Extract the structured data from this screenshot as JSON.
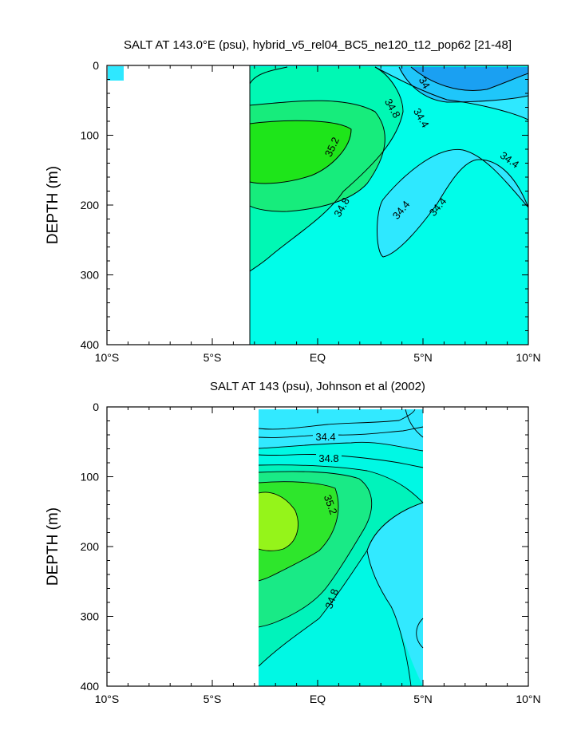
{
  "chart_data": [
    {
      "type": "contour",
      "title": "SALT AT 143.0°E (psu), hybrid_v5_rel04_BC5_ne120_t12_pop62 [21-48]",
      "ylabel": "DEPTH (m)",
      "xlim": [
        -10,
        10
      ],
      "ylim": [
        400,
        0
      ],
      "x_ticks": [
        {
          "value": -10,
          "label": "10°S"
        },
        {
          "value": -5,
          "label": "5°S"
        },
        {
          "value": 0,
          "label": "EQ"
        },
        {
          "value": 5,
          "label": "5°N"
        },
        {
          "value": 10,
          "label": "10°N"
        }
      ],
      "y_ticks": [
        {
          "value": 0,
          "label": "0"
        },
        {
          "value": 100,
          "label": "100"
        },
        {
          "value": 200,
          "label": "200"
        },
        {
          "value": 300,
          "label": "300"
        },
        {
          "value": 400,
          "label": "400"
        }
      ],
      "contour_interval": 0.2,
      "data_lon_range": [
        -3.2,
        10
      ],
      "contour_labels": [
        "34",
        "34.4",
        "34.8",
        "35.2",
        "34.4",
        "34.8",
        "34.4",
        "34.4"
      ],
      "salinity_regions": [
        {
          "value": 34.0,
          "color": "#1aa0f2",
          "desc": "fresh core near 7°N at surface"
        },
        {
          "value": 34.2,
          "color": "#1fc6fa",
          "desc": "upper-right"
        },
        {
          "value": 34.4,
          "color": "#2ee8ff",
          "desc": "surface band and 34.4 tongue"
        },
        {
          "value": 34.6,
          "color": "#00fde9",
          "desc": "deep water"
        },
        {
          "value": 34.8,
          "color": "#00f8b4",
          "desc": "mid-depth"
        },
        {
          "value": 35.0,
          "color": "#17ec7c",
          "desc": "around core"
        },
        {
          "value": 35.2,
          "color": "#1ee51a",
          "desc": "salinity maximum core ~120-200 m, 3°S-1°S"
        }
      ]
    },
    {
      "type": "contour",
      "title": "SALT AT 143 (psu), Johnson et al (2002)",
      "ylabel": "DEPTH (m)",
      "xlim": [
        -10,
        10
      ],
      "ylim": [
        400,
        0
      ],
      "x_ticks": [
        {
          "value": -10,
          "label": "10°S"
        },
        {
          "value": -5,
          "label": "5°S"
        },
        {
          "value": 0,
          "label": "EQ"
        },
        {
          "value": 5,
          "label": "5°N"
        },
        {
          "value": 10,
          "label": "10°N"
        }
      ],
      "y_ticks": [
        {
          "value": 0,
          "label": "0"
        },
        {
          "value": 100,
          "label": "100"
        },
        {
          "value": 200,
          "label": "200"
        },
        {
          "value": 300,
          "label": "300"
        },
        {
          "value": 400,
          "label": "400"
        }
      ],
      "contour_interval": 0.2,
      "data_lon_range": [
        -2.8,
        5
      ],
      "contour_labels": [
        "34.4",
        "34.8",
        "35.2",
        "34.8"
      ],
      "salinity_regions": [
        {
          "value": 34.2,
          "color": "#2ee8ff",
          "desc": "surface near 5°N"
        },
        {
          "value": 34.4,
          "color": "#32e9ff",
          "desc": "upper layer"
        },
        {
          "value": 34.6,
          "color": "#00f8e4",
          "desc": "deep/northern water"
        },
        {
          "value": 34.8,
          "color": "#00f3bb",
          "desc": "mid-depth"
        },
        {
          "value": 35.0,
          "color": "#19ea86",
          "desc": "around core"
        },
        {
          "value": 35.2,
          "color": "#2ee62c",
          "desc": "core"
        },
        {
          "value": 35.4,
          "color": "#95f41a",
          "desc": "maximum ~130-210 m near 2°S"
        }
      ]
    }
  ]
}
